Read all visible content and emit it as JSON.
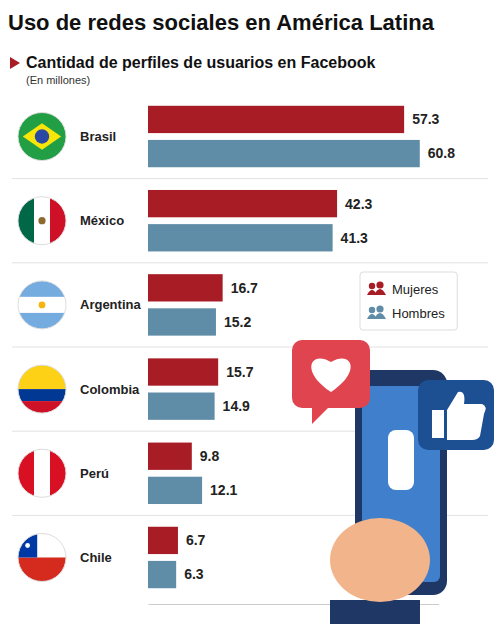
{
  "chart_data": {
    "type": "bar",
    "orientation": "horizontal",
    "title": "Uso de redes sociales en América Latina",
    "subtitle": "Cantidad de perfiles de usuarios en Facebook",
    "annotations": [
      "(En millones)"
    ],
    "categories": [
      "Brasil",
      "México",
      "Argentina",
      "Colombia",
      "Perú",
      "Chile"
    ],
    "series": [
      {
        "name": "Mujeres",
        "color": "#a81c26",
        "values": [
          57.3,
          42.3,
          16.7,
          15.7,
          9.8,
          6.7
        ]
      },
      {
        "name": "Hombres",
        "color": "#5f8ca7",
        "values": [
          60.8,
          41.3,
          15.2,
          14.9,
          12.1,
          6.3
        ]
      }
    ],
    "xlim": [
      0,
      65
    ],
    "xticks": [],
    "tick_labels": false,
    "data_labels": true,
    "legend": "right",
    "grid": false
  }
}
